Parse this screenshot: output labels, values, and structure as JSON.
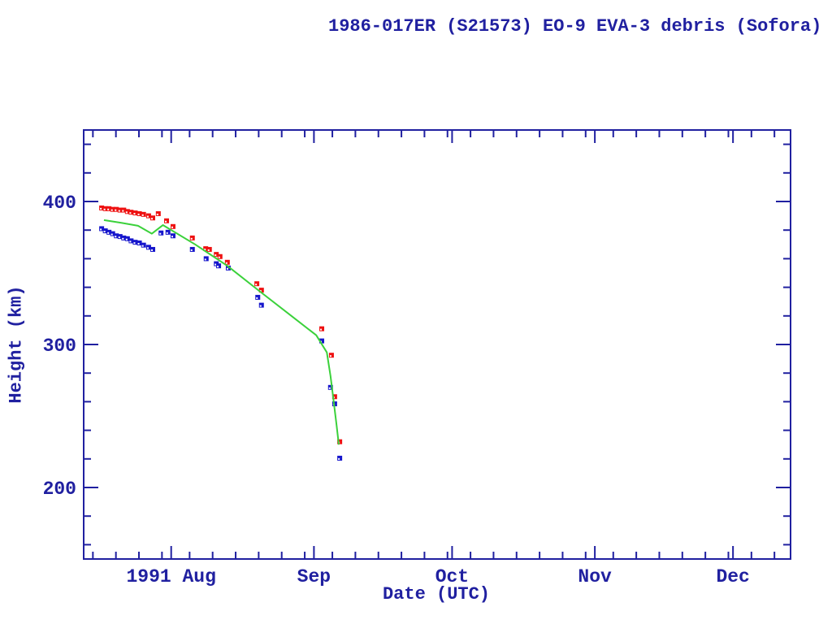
{
  "chart": {
    "title": "1986-017ER (S21573) EO-9 EVA-3 debris (Sofora)",
    "xlabel": "Date (UTC)",
    "ylabel": "Height (km)"
  },
  "colors": {
    "axis_and_text": "#2020a0",
    "red_marker": "#ee1111",
    "blue_marker": "#1616cc",
    "green_line": "#3bd13b",
    "background": "#ffffff"
  },
  "chart_data": {
    "type": "scatter",
    "title": "1986-017ER (S21573) EO-9 EVA-3 debris (Sofora)",
    "xlabel": "Date (UTC)",
    "ylabel": "Height (km)",
    "grid": false,
    "legend": "none",
    "x_axis": {
      "unit": "days, day 0 = 1991 Jul 13",
      "range_days": [
        0,
        153.5
      ],
      "month_ticks": [
        {
          "label": "1991 Aug",
          "day": 19
        },
        {
          "label": "Sep",
          "day": 50
        },
        {
          "label": "Oct",
          "day": 80
        },
        {
          "label": "Nov",
          "day": 111
        },
        {
          "label": "Dec",
          "day": 141
        }
      ],
      "minor_tick_days": [
        2,
        7,
        12,
        17,
        23,
        28,
        33,
        38,
        43,
        48,
        54,
        59,
        64,
        69,
        74,
        79,
        84,
        89,
        94,
        99,
        104,
        109,
        115,
        120,
        125,
        130,
        135,
        140,
        145,
        150
      ]
    },
    "y_axis": {
      "range": [
        150,
        450
      ],
      "major_ticks": [
        {
          "value": 400,
          "label": "400"
        },
        {
          "value": 300,
          "label": "300"
        },
        {
          "value": 200,
          "label": "200"
        }
      ],
      "minor_ticks": [
        160,
        180,
        220,
        240,
        260,
        280,
        320,
        340,
        360,
        380,
        420,
        440
      ]
    },
    "series": [
      {
        "name": "upper-height-red-squares",
        "type": "scatter",
        "marker": "square",
        "color": "#ee1111",
        "points": [
          [
            3.9,
            395.5
          ],
          [
            4.7,
            395
          ],
          [
            5.5,
            395
          ],
          [
            6.3,
            394.5
          ],
          [
            7.1,
            394.5
          ],
          [
            7.9,
            394
          ],
          [
            8.7,
            394
          ],
          [
            9.5,
            393
          ],
          [
            10.3,
            392.5
          ],
          [
            11.2,
            392
          ],
          [
            12.1,
            391.5
          ],
          [
            13.0,
            391
          ],
          [
            14.1,
            390
          ],
          [
            15.0,
            388.5
          ],
          [
            16.2,
            391.5
          ],
          [
            18.0,
            386.5
          ],
          [
            19.4,
            382.5
          ],
          [
            23.6,
            374.5
          ],
          [
            26.5,
            367
          ],
          [
            27.3,
            366.5
          ],
          [
            28.8,
            363
          ],
          [
            29.6,
            361.5
          ],
          [
            31.2,
            357.5
          ],
          [
            37.6,
            342.5
          ],
          [
            38.6,
            338
          ],
          [
            51.7,
            311
          ],
          [
            53.8,
            292.5
          ],
          [
            54.5,
            263.5
          ],
          [
            55.6,
            232
          ]
        ]
      },
      {
        "name": "lower-height-blue-squares",
        "type": "scatter",
        "marker": "square",
        "color": "#1616cc",
        "points": [
          [
            3.9,
            381
          ],
          [
            4.7,
            379.5
          ],
          [
            5.5,
            378.5
          ],
          [
            6.3,
            377.5
          ],
          [
            7.1,
            376
          ],
          [
            7.9,
            375.5
          ],
          [
            8.7,
            374.5
          ],
          [
            9.5,
            374
          ],
          [
            10.3,
            372.5
          ],
          [
            11.2,
            371.5
          ],
          [
            12.1,
            371
          ],
          [
            13.0,
            369.5
          ],
          [
            14.1,
            368
          ],
          [
            15.0,
            366.5
          ],
          [
            16.8,
            378
          ],
          [
            18.3,
            378.5
          ],
          [
            19.4,
            376
          ],
          [
            23.6,
            366.5
          ],
          [
            26.6,
            360
          ],
          [
            28.8,
            356.5
          ],
          [
            29.3,
            355
          ],
          [
            31.4,
            353.5
          ],
          [
            37.8,
            333
          ],
          [
            38.6,
            327.5
          ],
          [
            51.7,
            302.5
          ],
          [
            53.6,
            270
          ],
          [
            54.5,
            258.5
          ],
          [
            55.6,
            220.5
          ]
        ]
      },
      {
        "name": "mean-height-green-line",
        "type": "line",
        "color": "#3bd13b",
        "points": [
          [
            4.4,
            387
          ],
          [
            8.3,
            385
          ],
          [
            11.8,
            383
          ],
          [
            14.8,
            377.5
          ],
          [
            17.2,
            383.5
          ],
          [
            24.2,
            370
          ],
          [
            31.2,
            355
          ],
          [
            38.3,
            337
          ],
          [
            45.3,
            319.5
          ],
          [
            50.5,
            306.5
          ],
          [
            52.8,
            294.5
          ],
          [
            53.6,
            278
          ],
          [
            54.2,
            262.5
          ],
          [
            54.9,
            244
          ],
          [
            55.4,
            230
          ]
        ]
      }
    ]
  }
}
